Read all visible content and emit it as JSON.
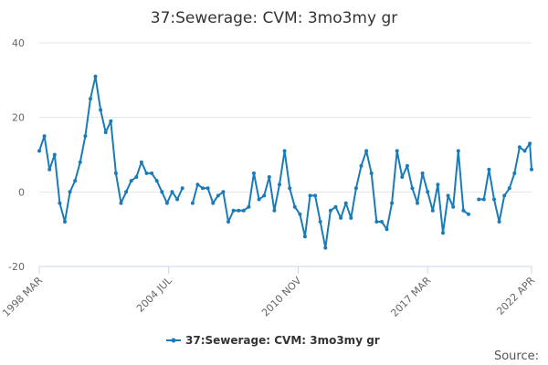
{
  "chart_data": {
    "type": "line",
    "title": "37:Sewerage: CVM: 3mo3my gr",
    "xlabel": "",
    "ylabel": "",
    "ylim": [
      -20,
      40
    ],
    "y_ticks": [
      -20,
      0,
      20,
      40
    ],
    "x_ticks": [
      "1998 MAR",
      "2004 JUL",
      "2010 NOV",
      "2017 MAR",
      "2022 APR"
    ],
    "x_range": [
      "1998-03",
      "2022-04"
    ],
    "grid": "horizontal",
    "legend_position": "bottom-center",
    "series": [
      {
        "name": "37:Sewerage: CVM: 3mo3my gr",
        "color": "#1a7bb9",
        "marker": "circle",
        "x": [
          "1998-03",
          "1998-06",
          "1998-09",
          "1998-12",
          "1999-03",
          "1999-06",
          "1999-09",
          "1999-12",
          "2000-03",
          "2000-06",
          "2000-09",
          "2000-12",
          "2001-03",
          "2001-06",
          "2001-09",
          "2001-12",
          "2002-03",
          "2002-06",
          "2002-09",
          "2002-12",
          "2003-03",
          "2003-06",
          "2003-09",
          "2003-12",
          "2004-03",
          "2004-06",
          "2004-09",
          "2004-12",
          "2005-03",
          "2005-06",
          "2005-09",
          "2005-12",
          "2006-03",
          "2006-06",
          "2006-09",
          "2006-12",
          "2007-03",
          "2007-06",
          "2007-09",
          "2007-12",
          "2008-03",
          "2008-06",
          "2008-09",
          "2008-12",
          "2009-03",
          "2009-06",
          "2009-09",
          "2009-12",
          "2010-03",
          "2010-06",
          "2010-09",
          "2010-12",
          "2011-03",
          "2011-06",
          "2011-09",
          "2011-12",
          "2012-03",
          "2012-06",
          "2012-09",
          "2012-12",
          "2013-03",
          "2013-06",
          "2013-09",
          "2013-12",
          "2014-03",
          "2014-06",
          "2014-09",
          "2014-12",
          "2015-03",
          "2015-06",
          "2015-09",
          "2015-12",
          "2016-03",
          "2016-06",
          "2016-09",
          "2016-12",
          "2017-03",
          "2017-06",
          "2017-09",
          "2017-12",
          "2018-03",
          "2018-06",
          "2018-09",
          "2018-12",
          "2019-03",
          "2019-06",
          "2019-09",
          "2019-12",
          "2020-03",
          "2020-06",
          "2020-09",
          "2020-12",
          "2021-03",
          "2021-06",
          "2021-09",
          "2021-12",
          "2022-03",
          "2022-04"
        ],
        "values": [
          11,
          15,
          6,
          10,
          -3,
          -8,
          0,
          3,
          8,
          15,
          25,
          31,
          22,
          16,
          19,
          5,
          -3,
          0,
          3,
          4,
          8,
          5,
          5,
          3,
          0,
          -3,
          0,
          -2,
          1,
          null,
          -3,
          2,
          1,
          1,
          -3,
          -1,
          0,
          -8,
          -5,
          -5,
          -5,
          -4,
          5,
          -2,
          -1,
          4,
          -5,
          2,
          11,
          1,
          -4,
          -6,
          -12,
          -1,
          -1,
          -8,
          -15,
          -5,
          -4,
          -7,
          -3,
          -7,
          1,
          7,
          11,
          5,
          -8,
          -8,
          -10,
          -3,
          11,
          4,
          7,
          1,
          -3,
          5,
          0,
          -5,
          2,
          -11,
          -1,
          -4,
          11,
          -5,
          -6,
          null,
          -2,
          -2,
          6,
          -2,
          -8,
          -1,
          1,
          5,
          12,
          11,
          13,
          6
        ]
      }
    ]
  },
  "legend": {
    "label": "37:Sewerage: CVM: 3mo3my gr"
  },
  "credits": {
    "label": "Source:"
  }
}
